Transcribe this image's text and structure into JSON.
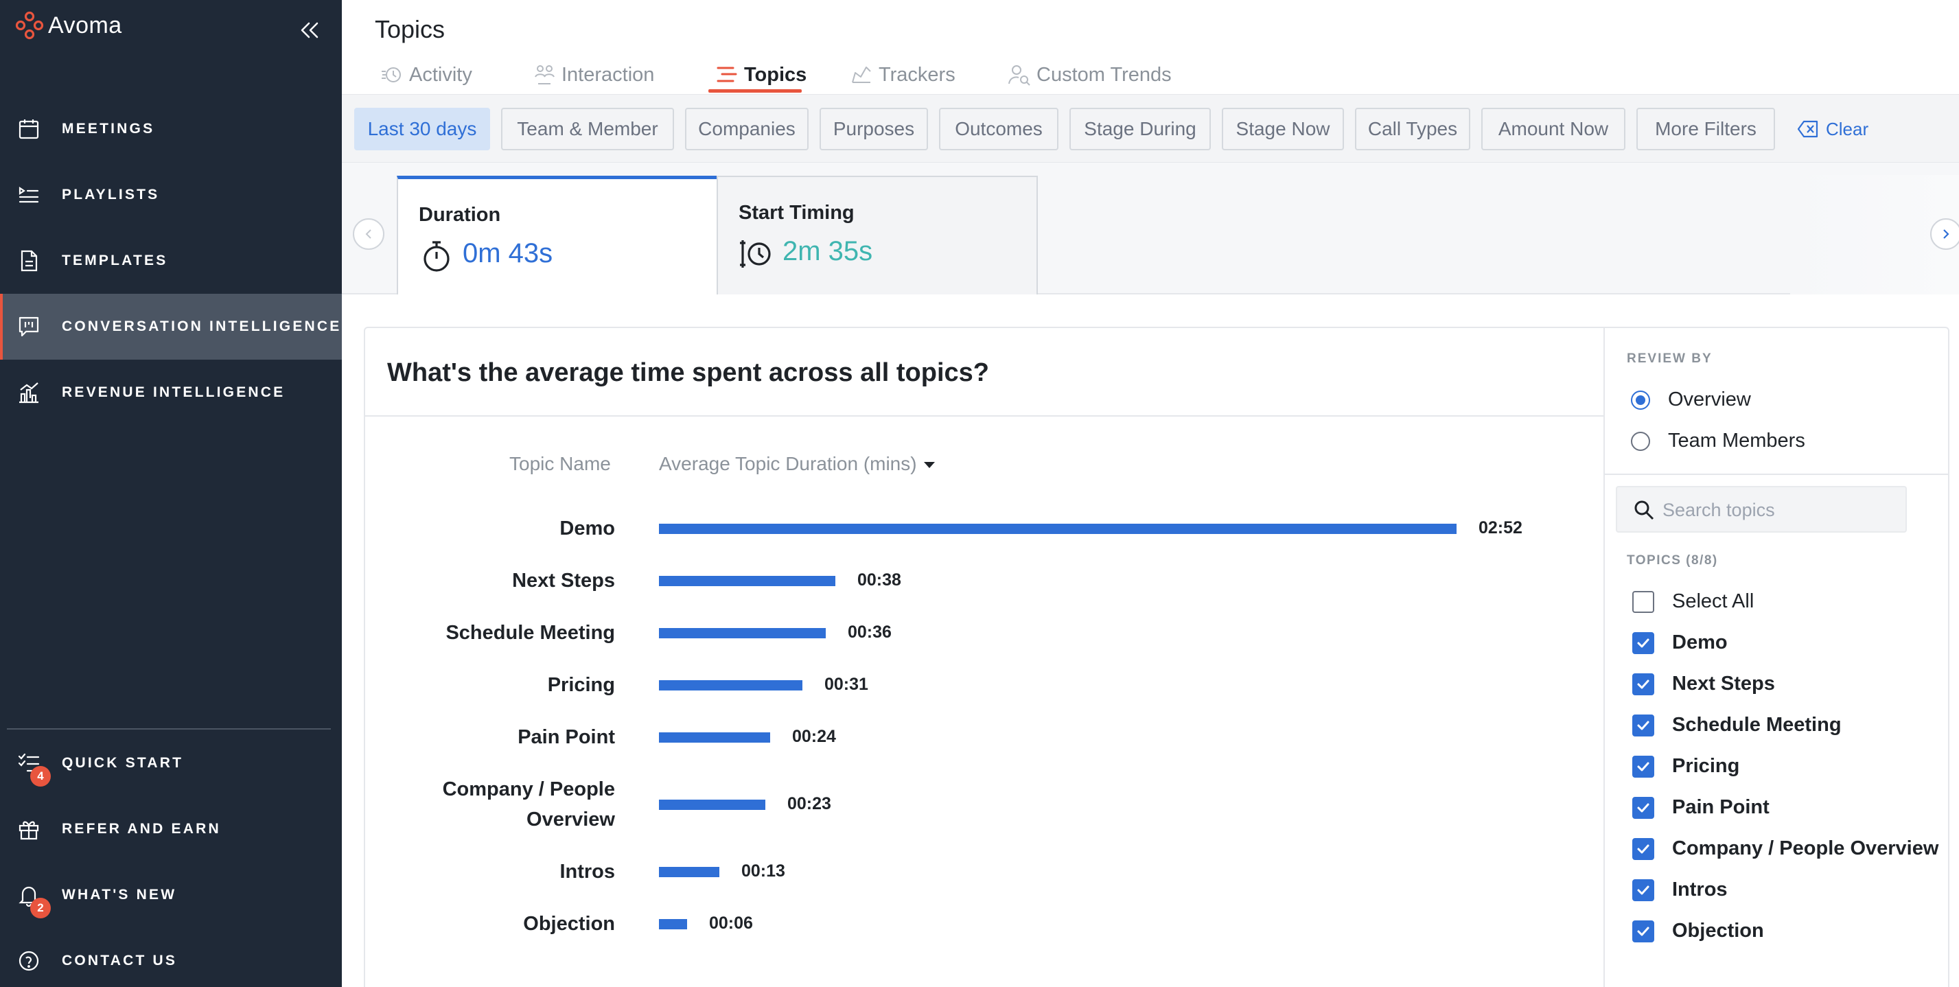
{
  "app": {
    "name": "Avoma"
  },
  "sidebar": {
    "items": [
      {
        "label": "MEETINGS",
        "icon": "calendar-icon"
      },
      {
        "label": "PLAYLISTS",
        "icon": "playlist-icon"
      },
      {
        "label": "TEMPLATES",
        "icon": "document-icon"
      },
      {
        "label": "CONVERSATION INTELLIGENCE",
        "icon": "chat-bars-icon",
        "active": true
      },
      {
        "label": "REVENUE INTELLIGENCE",
        "icon": "bar-chart-icon"
      }
    ],
    "bottom_items": [
      {
        "label": "QUICK START",
        "icon": "checklist-icon",
        "badge": "4"
      },
      {
        "label": "REFER AND EARN",
        "icon": "gift-icon"
      },
      {
        "label": "WHAT'S NEW",
        "icon": "bell-icon",
        "badge": "2"
      },
      {
        "label": "CONTACT US",
        "icon": "help-icon"
      }
    ]
  },
  "header": {
    "title": "Topics",
    "tabs": [
      {
        "label": "Activity",
        "icon": "activity-icon"
      },
      {
        "label": "Interaction",
        "icon": "people-icon"
      },
      {
        "label": "Topics",
        "icon": "topics-icon",
        "active": true
      },
      {
        "label": "Trackers",
        "icon": "tracker-icon"
      },
      {
        "label": "Custom Trends",
        "icon": "user-search-icon"
      }
    ]
  },
  "filters": {
    "chips": [
      "Last 30 days",
      "Team & Member",
      "Companies",
      "Purposes",
      "Outcomes",
      "Stage During",
      "Stage Now",
      "Call Types",
      "Amount Now",
      "More Filters"
    ],
    "clear_label": "Clear"
  },
  "metrics": [
    {
      "title": "Duration",
      "value": "0m 43s",
      "color": "#2f6fd6",
      "active": true
    },
    {
      "title": "Start Timing",
      "value": "2m 35s",
      "color": "#3fb5b0"
    }
  ],
  "chart_card": {
    "title": "What's the average time spent across all topics?",
    "col_topic": "Topic Name",
    "col_duration": "Average Topic Duration (mins)"
  },
  "chart_data": {
    "type": "bar",
    "orientation": "horizontal",
    "categories": [
      "Demo",
      "Next Steps",
      "Schedule Meeting",
      "Pricing",
      "Pain Point",
      "Company / People Overview",
      "Intros",
      "Objection"
    ],
    "values_seconds": [
      172,
      38,
      36,
      31,
      24,
      23,
      13,
      6
    ],
    "value_labels": [
      "02:52",
      "00:38",
      "00:36",
      "00:31",
      "00:24",
      "00:23",
      "00:13",
      "00:06"
    ],
    "bar_color": "#2f6fd6"
  },
  "review_by": {
    "label": "REVIEW BY",
    "options": [
      {
        "label": "Overview",
        "selected": true
      },
      {
        "label": "Team Members",
        "selected": false
      }
    ]
  },
  "topic_filter": {
    "search_placeholder": "Search topics",
    "count_label": "TOPICS (8/8)",
    "select_all": "Select All",
    "items": [
      "Demo",
      "Next Steps",
      "Schedule Meeting",
      "Pricing",
      "Pain Point",
      "Company / People Overview",
      "Intros",
      "Objection"
    ]
  }
}
